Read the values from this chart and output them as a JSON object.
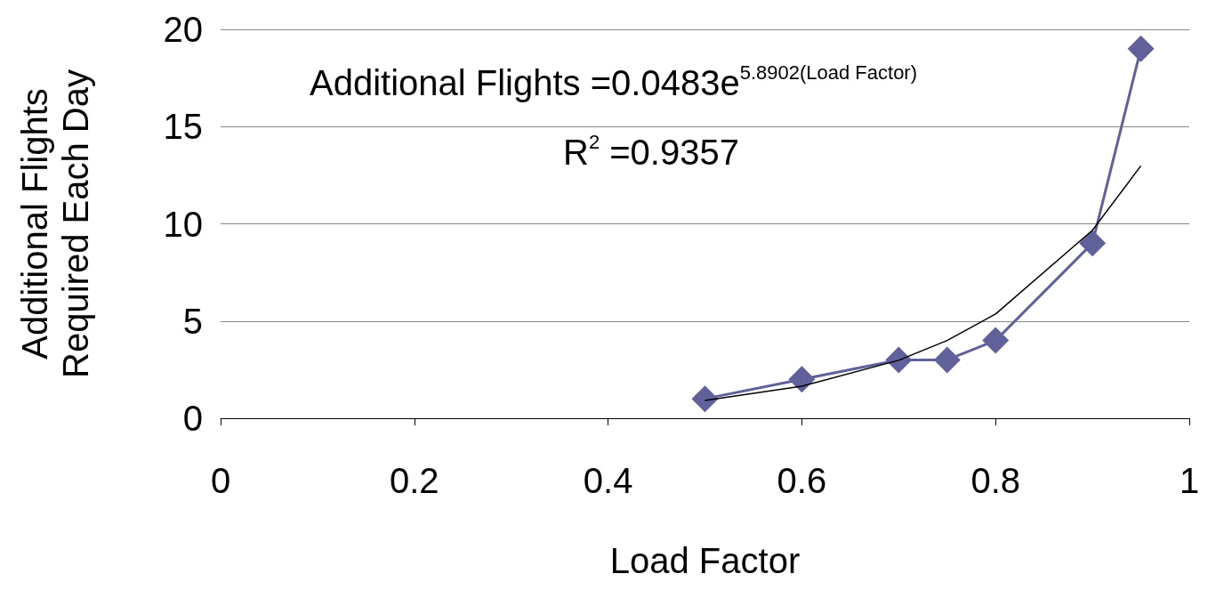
{
  "chart_data": {
    "type": "line",
    "xlabel": "Load Factor",
    "ylabel": "Additional Flights\nRequired Each Day",
    "x": [
      0.5,
      0.6,
      0.7,
      0.75,
      0.8,
      0.9,
      0.95
    ],
    "series": [
      {
        "color": "#60609a",
        "values": [
          1,
          2,
          3,
          3,
          4,
          9,
          19
        ],
        "marker": "diamond"
      },
      {
        "type": "line",
        "color": "#000000",
        "marker": "none",
        "x": [
          0.5,
          0.6,
          0.7,
          0.75,
          0.8,
          0.9,
          0.95
        ],
        "values": [
          0.92,
          1.65,
          2.98,
          4.0,
          5.36,
          9.67,
          12.98
        ]
      }
    ],
    "xlim": [
      0,
      1
    ],
    "xticks": [
      0,
      0.2,
      0.4,
      0.6,
      0.8,
      1
    ],
    "ylim": [
      0,
      20
    ],
    "yticks": [
      0,
      5,
      10,
      15,
      20
    ],
    "grid": "y",
    "annotations": [
      "Additional Flights =0.0483e$^{5.8902(Load Factor)}$",
      "R$^{2}$ =0.9357"
    ]
  }
}
